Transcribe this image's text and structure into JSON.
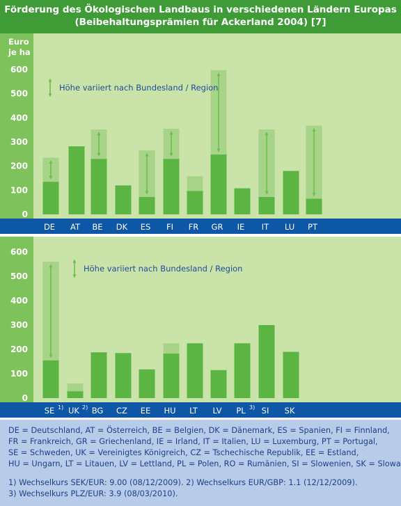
{
  "header": {
    "title_line1": "Förderung des Ökologischen Landbaus in verschiedenen Ländern Europas",
    "title_line2": "(Beibehaltungsprämien für Ackerland 2004) [7]"
  },
  "colors": {
    "header_bg": "#3e9b35",
    "panel_bg": "#c9e3a8",
    "axis_band": "#7dc25a",
    "bar_dark": "#5cb543",
    "bar_light": "#a8d489",
    "arrow": "#6cbf4b",
    "category_band": "#0d57a6",
    "footer_bg": "#b8cbe8",
    "footer_text": "#1f3f8a"
  },
  "chart_data": [
    {
      "type": "bar",
      "ylabel": "Euro je ha",
      "ylim": [
        0,
        600
      ],
      "yticks": [
        "0",
        "100",
        "200",
        "300",
        "400",
        "500",
        "600"
      ],
      "annotation": "Höhe variiert nach Bundesland / Region",
      "categories": [
        "DE",
        "AT",
        "BE",
        "DK",
        "ES",
        "FI",
        "FR",
        "GR",
        "IE",
        "IT",
        "LU",
        "PT"
      ],
      "category_superscripts": [
        "",
        "",
        "",
        "",
        "",
        "",
        "",
        "",
        "",
        "",
        "",
        ""
      ],
      "series": [
        {
          "values": [
            135,
            282,
            230,
            120,
            72,
            230,
            97,
            248,
            108,
            72,
            180,
            65
          ]
        },
        {
          "values": [
            235,
            282,
            352,
            120,
            265,
            355,
            158,
            598,
            108,
            352,
            180,
            368
          ]
        }
      ],
      "range_arrows": [
        "DE",
        "BE",
        "ES",
        "FI",
        "GR",
        "IT",
        "PT"
      ]
    },
    {
      "type": "bar",
      "ylim": [
        0,
        600
      ],
      "yticks": [
        "0",
        "100",
        "200",
        "300",
        "400",
        "500",
        "600"
      ],
      "annotation": "Höhe variiert nach Bundesland / Region",
      "categories": [
        "SE",
        "UK",
        "BG",
        "CZ",
        "EE",
        "HU",
        "LT",
        "LV",
        "PL",
        "SI",
        "SK"
      ],
      "category_superscripts": [
        "1)",
        "2)",
        "",
        "",
        "",
        "",
        "",
        "",
        "3)",
        "",
        ""
      ],
      "series": [
        {
          "values": [
            155,
            28,
            188,
            185,
            118,
            183,
            225,
            115,
            225,
            300,
            190
          ]
        },
        {
          "values": [
            560,
            60,
            188,
            185,
            118,
            225,
            225,
            115,
            225,
            300,
            190
          ]
        }
      ],
      "range_arrows": [
        "SE"
      ]
    }
  ],
  "footer": {
    "legend_lines": [
      "DE = Deutschland, AT = Österreich, BE = Belgien, DK = Dänemark, ES = Spanien, FI = Finnland,",
      "FR = Frankreich, GR = Griechenland, IE = Irland, IT = Italien, LU = Luxemburg, PT = Portugal,",
      "SE = Schweden, UK = Vereinigtes Königreich, CZ = Tschechische Republik, EE = Estland,",
      "HU = Ungarn, LT = Litauen, LV = Lettland, PL = Polen, RO = Rumänien, SI = Slowenien, SK = Slowakei"
    ],
    "notes": [
      "1) Wechselkurs SEK/EUR: 9.00 (08/12/2009). 2) Wechselkurs EUR/GBP: 1.1 (12/12/2009).",
      "3) Wechselkurs PLZ/EUR: 3.9 (08/03/2010)."
    ]
  }
}
